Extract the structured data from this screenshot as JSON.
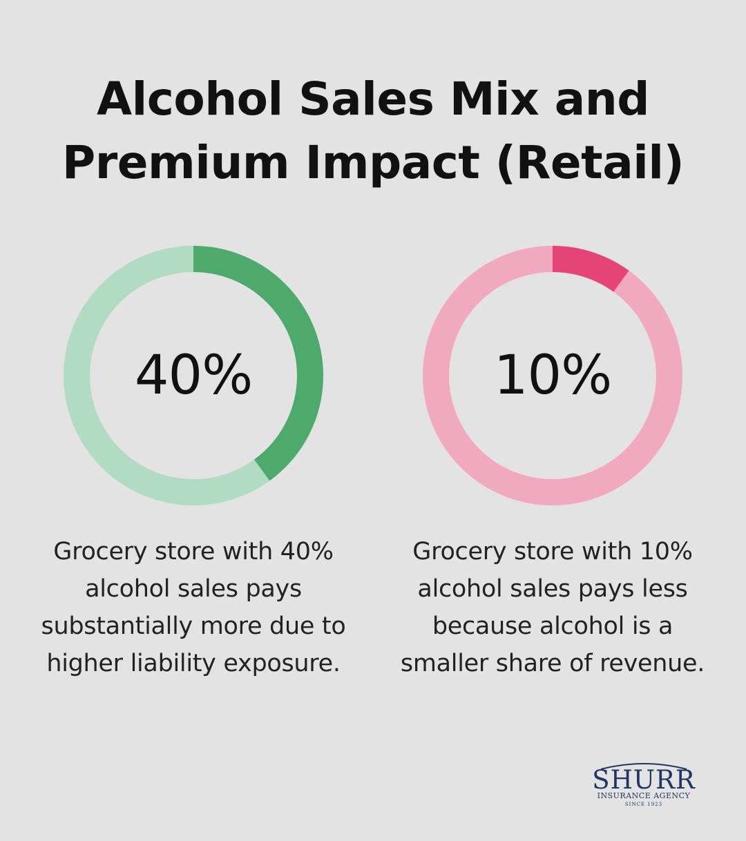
{
  "title": {
    "line1": "Alcohol Sales Mix and",
    "line2": "Premium Impact (Retail)"
  },
  "chart_data": [
    {
      "type": "pie",
      "label": "40%",
      "value": 40,
      "max": 100,
      "colors": {
        "fill": "#4ea96c",
        "track": "#b1dcc2"
      },
      "description": "Grocery store with 40% alcohol sales pays substantially more due to higher liability exposure."
    },
    {
      "type": "pie",
      "label": "10%",
      "value": 10,
      "max": 100,
      "colors": {
        "fill": "#e44576",
        "track": "#f2a8bf"
      },
      "description": "Grocery store with 10% alcohol sales pays less because alcohol is a smaller share of revenue."
    }
  ],
  "logo": {
    "name": "SHURR",
    "subtitle": "INSURANCE AGENCY",
    "since": "SINCE 1923",
    "color": "#1f3563"
  }
}
